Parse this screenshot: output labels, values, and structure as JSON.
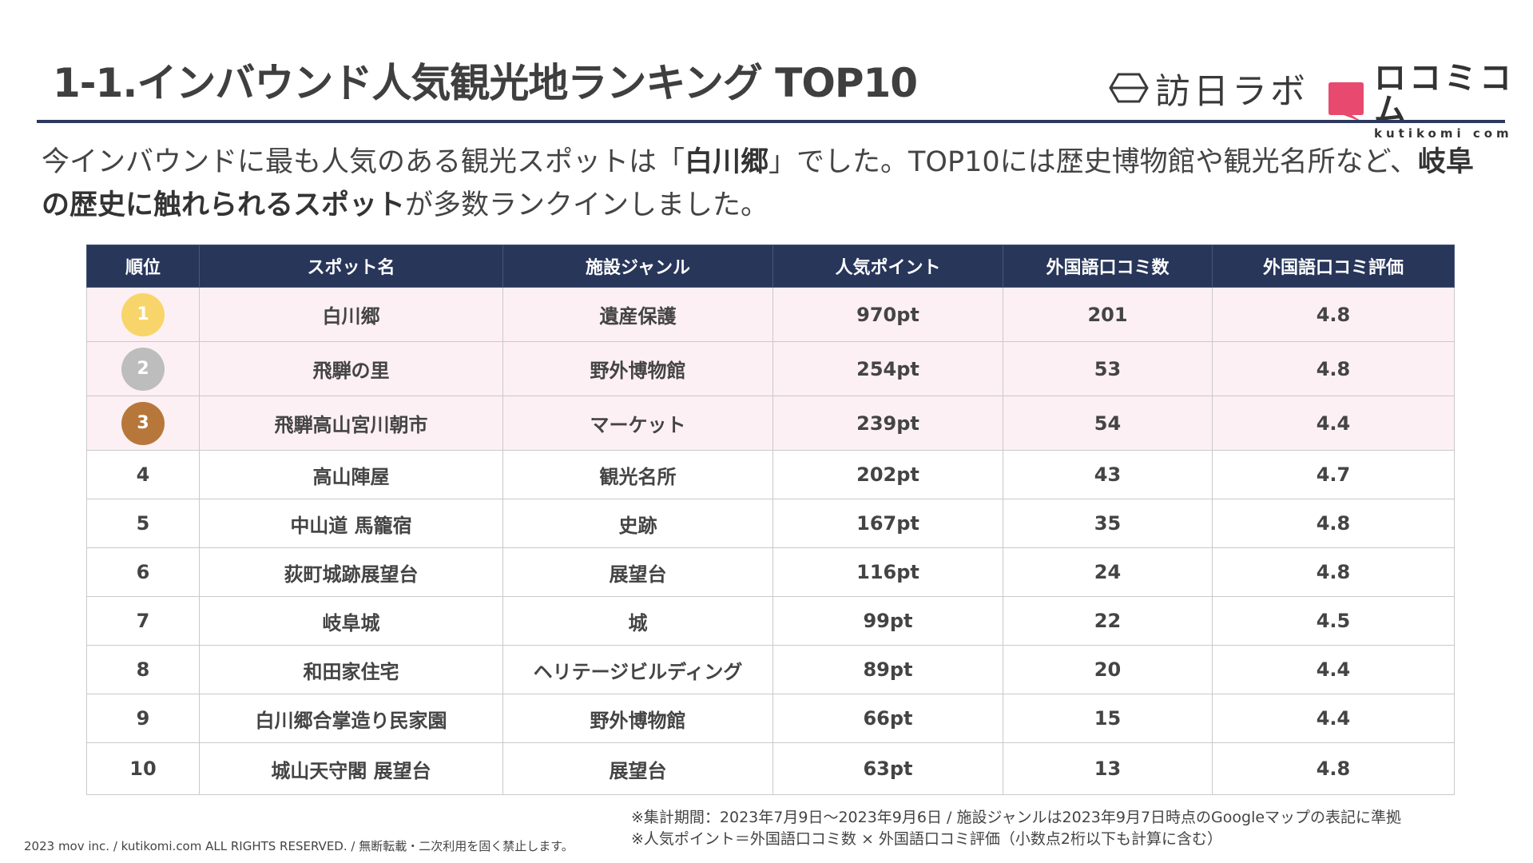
{
  "title": "1-1.インバウンド人気観光地ランキング TOP10",
  "logos": {
    "brand1": "訪日ラボ",
    "brand2_main": "ロコミコム",
    "brand2_sub": "kutikomi com"
  },
  "lead": {
    "part1": "今インバウンドに最も人気のある観光スポットは「",
    "bold1": "白川郷",
    "part2": "」でした。TOP10には歴史博物館や観光名所など、",
    "bold2": "岐阜の歴史に触れられるスポット",
    "part3": "が多数ランクインしました。"
  },
  "table": {
    "headers": [
      "順位",
      "スポット名",
      "施設ジャンル",
      "人気ポイント",
      "外国語口コミ数",
      "外国語口コミ評価"
    ],
    "rows": [
      {
        "rank": "1",
        "name": "白川郷",
        "genre": "遺産保護",
        "points": "970pt",
        "reviews": "201",
        "rating": "4.8"
      },
      {
        "rank": "2",
        "name": "飛騨の里",
        "genre": "野外博物館",
        "points": "254pt",
        "reviews": "53",
        "rating": "4.8"
      },
      {
        "rank": "3",
        "name": "飛騨高山宮川朝市",
        "genre": "マーケット",
        "points": "239pt",
        "reviews": "54",
        "rating": "4.4"
      },
      {
        "rank": "4",
        "name": "高山陣屋",
        "genre": "観光名所",
        "points": "202pt",
        "reviews": "43",
        "rating": "4.7"
      },
      {
        "rank": "5",
        "name": "中山道 馬籠宿",
        "genre": "史跡",
        "points": "167pt",
        "reviews": "35",
        "rating": "4.8"
      },
      {
        "rank": "6",
        "name": "荻町城跡展望台",
        "genre": "展望台",
        "points": "116pt",
        "reviews": "24",
        "rating": "4.8"
      },
      {
        "rank": "7",
        "name": "岐阜城",
        "genre": "城",
        "points": "99pt",
        "reviews": "22",
        "rating": "4.5"
      },
      {
        "rank": "8",
        "name": "和田家住宅",
        "genre": "ヘリテージビルディング",
        "points": "89pt",
        "reviews": "20",
        "rating": "4.4"
      },
      {
        "rank": "9",
        "name": "白川郷合掌造り民家園",
        "genre": "野外博物館",
        "points": "66pt",
        "reviews": "15",
        "rating": "4.4"
      },
      {
        "rank": "10",
        "name": "城山天守閣 展望台",
        "genre": "展望台",
        "points": "63pt",
        "reviews": "13",
        "rating": "4.8"
      }
    ]
  },
  "colors": {
    "header_bg": "#28365a",
    "top3_row_bg": "#fdf0f4",
    "gold": "#f7d56a",
    "silver": "#bdbdbd",
    "bronze": "#b8773a",
    "brand_pink": "#e84a6f"
  },
  "notes": {
    "line1": "※集計期間：2023年7月9日～2023年9月6日 / 施設ジャンルは2023年9月7日時点のGoogleマップの表記に準拠",
    "line2": "※人気ポイント＝外国語口コミ数 × 外国語口コミ評価（小数点2桁以下も計算に含む）"
  },
  "copyright": "2023 mov inc. / kutikomi.com ALL RIGHTS RESERVED. / 無断転載・二次利用を固く禁止します。"
}
